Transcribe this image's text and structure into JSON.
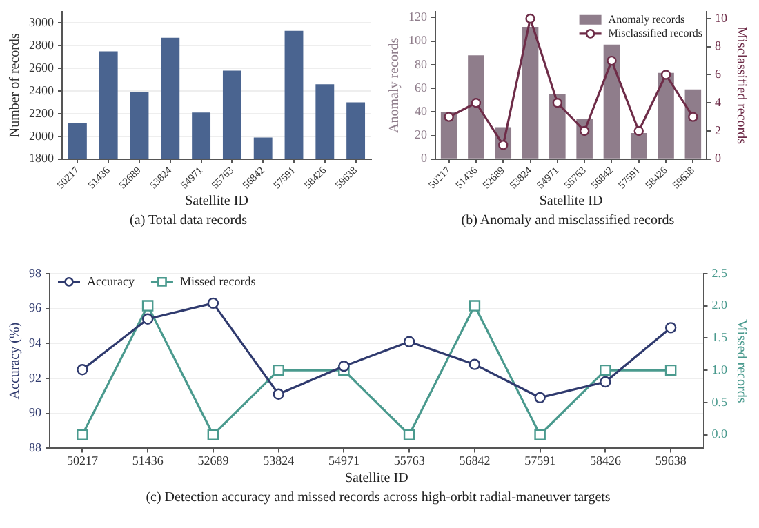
{
  "chart_data": [
    {
      "type": "bar",
      "title": "(a) Total data records",
      "xlabel": "Satellite ID",
      "ylabel": "Number of records",
      "categories": [
        "50217",
        "51436",
        "52689",
        "53824",
        "54971",
        "55763",
        "56842",
        "57591",
        "58426",
        "59638"
      ],
      "values": [
        2120,
        2750,
        2390,
        2870,
        2210,
        2580,
        1990,
        2930,
        2460,
        2300
      ],
      "color": "#4a6490",
      "ylim": [
        1800,
        3100
      ],
      "yticks": [
        1800,
        2000,
        2200,
        2400,
        2600,
        2800,
        3000
      ],
      "grid": "y"
    },
    {
      "type": "bar",
      "title": "(b) Anomaly and misclassified records",
      "xlabel": "Satellite ID",
      "ylabel": "Anomaly records",
      "y2label": "Misclassified records",
      "categories": [
        "50217",
        "51436",
        "52689",
        "53824",
        "54971",
        "55763",
        "56842",
        "57591",
        "58426",
        "59638"
      ],
      "series": [
        {
          "name": "Anomaly records",
          "color": "#8f7d8b",
          "values": [
            40,
            88,
            27,
            112,
            55,
            34,
            97,
            22,
            73,
            59
          ]
        },
        {
          "name": "Misclassified records",
          "type": "line",
          "axis": "y2",
          "marker": "circle",
          "color": "#6e2c48",
          "values": [
            3,
            4,
            1,
            10,
            4,
            2,
            7,
            2,
            6,
            3
          ]
        }
      ],
      "ylim": [
        0,
        125
      ],
      "yticks": [
        0,
        20,
        40,
        60,
        80,
        100,
        120
      ],
      "y2lim": [
        0,
        10.5
      ],
      "y2ticks": [
        0,
        2,
        4,
        6,
        8,
        10
      ],
      "legend": "top right"
    },
    {
      "type": "line",
      "title": "(c) Detection accuracy and missed records across high-orbit radial-maneuver targets",
      "xlabel": "Satellite ID",
      "ylabel": "Accuracy (%)",
      "y2label": "Missed records",
      "categories": [
        "50217",
        "51436",
        "52689",
        "53824",
        "54971",
        "55763",
        "56842",
        "57591",
        "58426",
        "59638"
      ],
      "series": [
        {
          "name": "Accuracy",
          "marker": "circle",
          "color": "#2f3a6e",
          "values": [
            92.5,
            95.4,
            96.3,
            91.1,
            92.7,
            94.1,
            92.8,
            90.9,
            91.8,
            94.9
          ]
        },
        {
          "name": "Missed records",
          "axis": "y2",
          "marker": "square",
          "color": "#4a9a8e",
          "values": [
            0,
            2,
            0,
            1,
            1,
            0,
            2,
            0,
            1,
            1
          ]
        }
      ],
      "ylim": [
        88,
        98
      ],
      "yticks": [
        88,
        90,
        92,
        94,
        96,
        98
      ],
      "y2lim": [
        -0.21,
        2.5
      ],
      "y2ticks": [
        {
          "value": 0,
          "label": "0.0"
        },
        {
          "value": 0.5,
          "label": "0.5"
        },
        {
          "value": 1,
          "label": "1.0"
        },
        {
          "value": 1.5,
          "label": "1.5"
        },
        {
          "value": 2,
          "label": "2.0"
        },
        {
          "value": 2.5,
          "label": "2.5"
        }
      ],
      "grid": "y",
      "legend": "top left"
    }
  ]
}
